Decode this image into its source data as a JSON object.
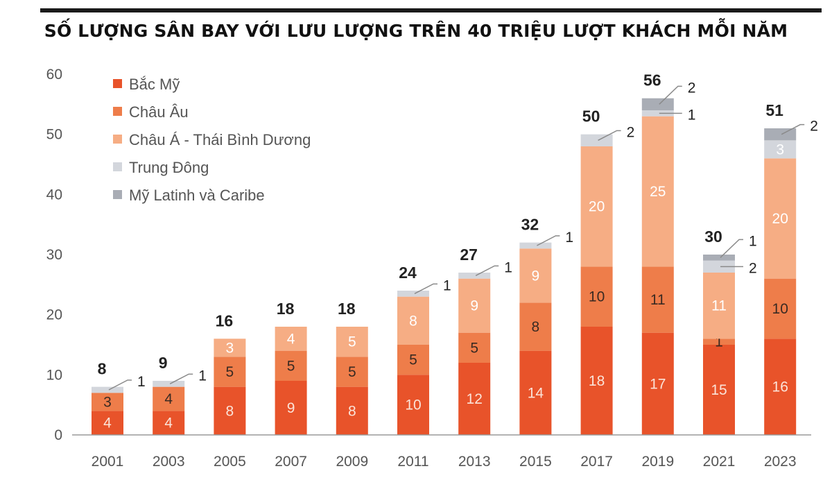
{
  "chart_data": {
    "type": "bar",
    "stacked": true,
    "title": "SỐ LƯỢNG SÂN BAY VỚI LƯU LƯỢNG TRÊN 40 TRIỆU LƯỢT KHÁCH MỖI NĂM",
    "xlabel": "",
    "ylabel": "",
    "ylim": [
      0,
      60
    ],
    "yticks": [
      0,
      10,
      20,
      30,
      40,
      50,
      60
    ],
    "grid": false,
    "legend_position": "top-left",
    "categories": [
      "2001",
      "2003",
      "2005",
      "2007",
      "2009",
      "2011",
      "2013",
      "2015",
      "2017",
      "2019",
      "2021",
      "2023"
    ],
    "totals": [
      8,
      9,
      16,
      18,
      18,
      24,
      27,
      32,
      50,
      56,
      30,
      51
    ],
    "series": [
      {
        "name": "Bắc Mỹ",
        "color": "#e8532a",
        "label_color": "#fbe3d8",
        "values": [
          4,
          4,
          8,
          9,
          8,
          10,
          12,
          14,
          18,
          17,
          15,
          16
        ],
        "labels_inside": [
          true,
          true,
          true,
          true,
          true,
          true,
          true,
          true,
          true,
          true,
          true,
          true
        ]
      },
      {
        "name": "Châu Âu",
        "color": "#ee7d4a",
        "label_color": "#3a2a22",
        "values": [
          3,
          4,
          5,
          5,
          5,
          5,
          5,
          8,
          10,
          11,
          1,
          10
        ],
        "labels_inside": [
          true,
          true,
          true,
          true,
          true,
          true,
          true,
          true,
          true,
          true,
          true,
          true
        ]
      },
      {
        "name": "Châu Á - Thái Bình Dương",
        "color": "#f6ad84",
        "label_color": "#ffffff",
        "values": [
          0,
          0,
          3,
          4,
          5,
          8,
          9,
          9,
          20,
          25,
          11,
          20
        ],
        "labels_inside": [
          false,
          false,
          true,
          true,
          true,
          true,
          true,
          true,
          true,
          true,
          true,
          true
        ]
      },
      {
        "name": "Trung Đông",
        "color": "#d3d6dc",
        "label_color": "#ffffff",
        "values": [
          1,
          1,
          0,
          0,
          0,
          1,
          1,
          1,
          2,
          1,
          2,
          3
        ],
        "labels_inside": [
          false,
          false,
          false,
          false,
          false,
          false,
          false,
          false,
          false,
          false,
          false,
          true
        ]
      },
      {
        "name": "Mỹ Latinh và Caribe",
        "color": "#a9adb5",
        "label_color": "#ffffff",
        "values": [
          0,
          0,
          0,
          0,
          0,
          0,
          0,
          0,
          0,
          2,
          1,
          2
        ],
        "labels_inside": [
          false,
          false,
          false,
          false,
          false,
          false,
          false,
          false,
          false,
          false,
          false,
          false
        ]
      }
    ]
  }
}
